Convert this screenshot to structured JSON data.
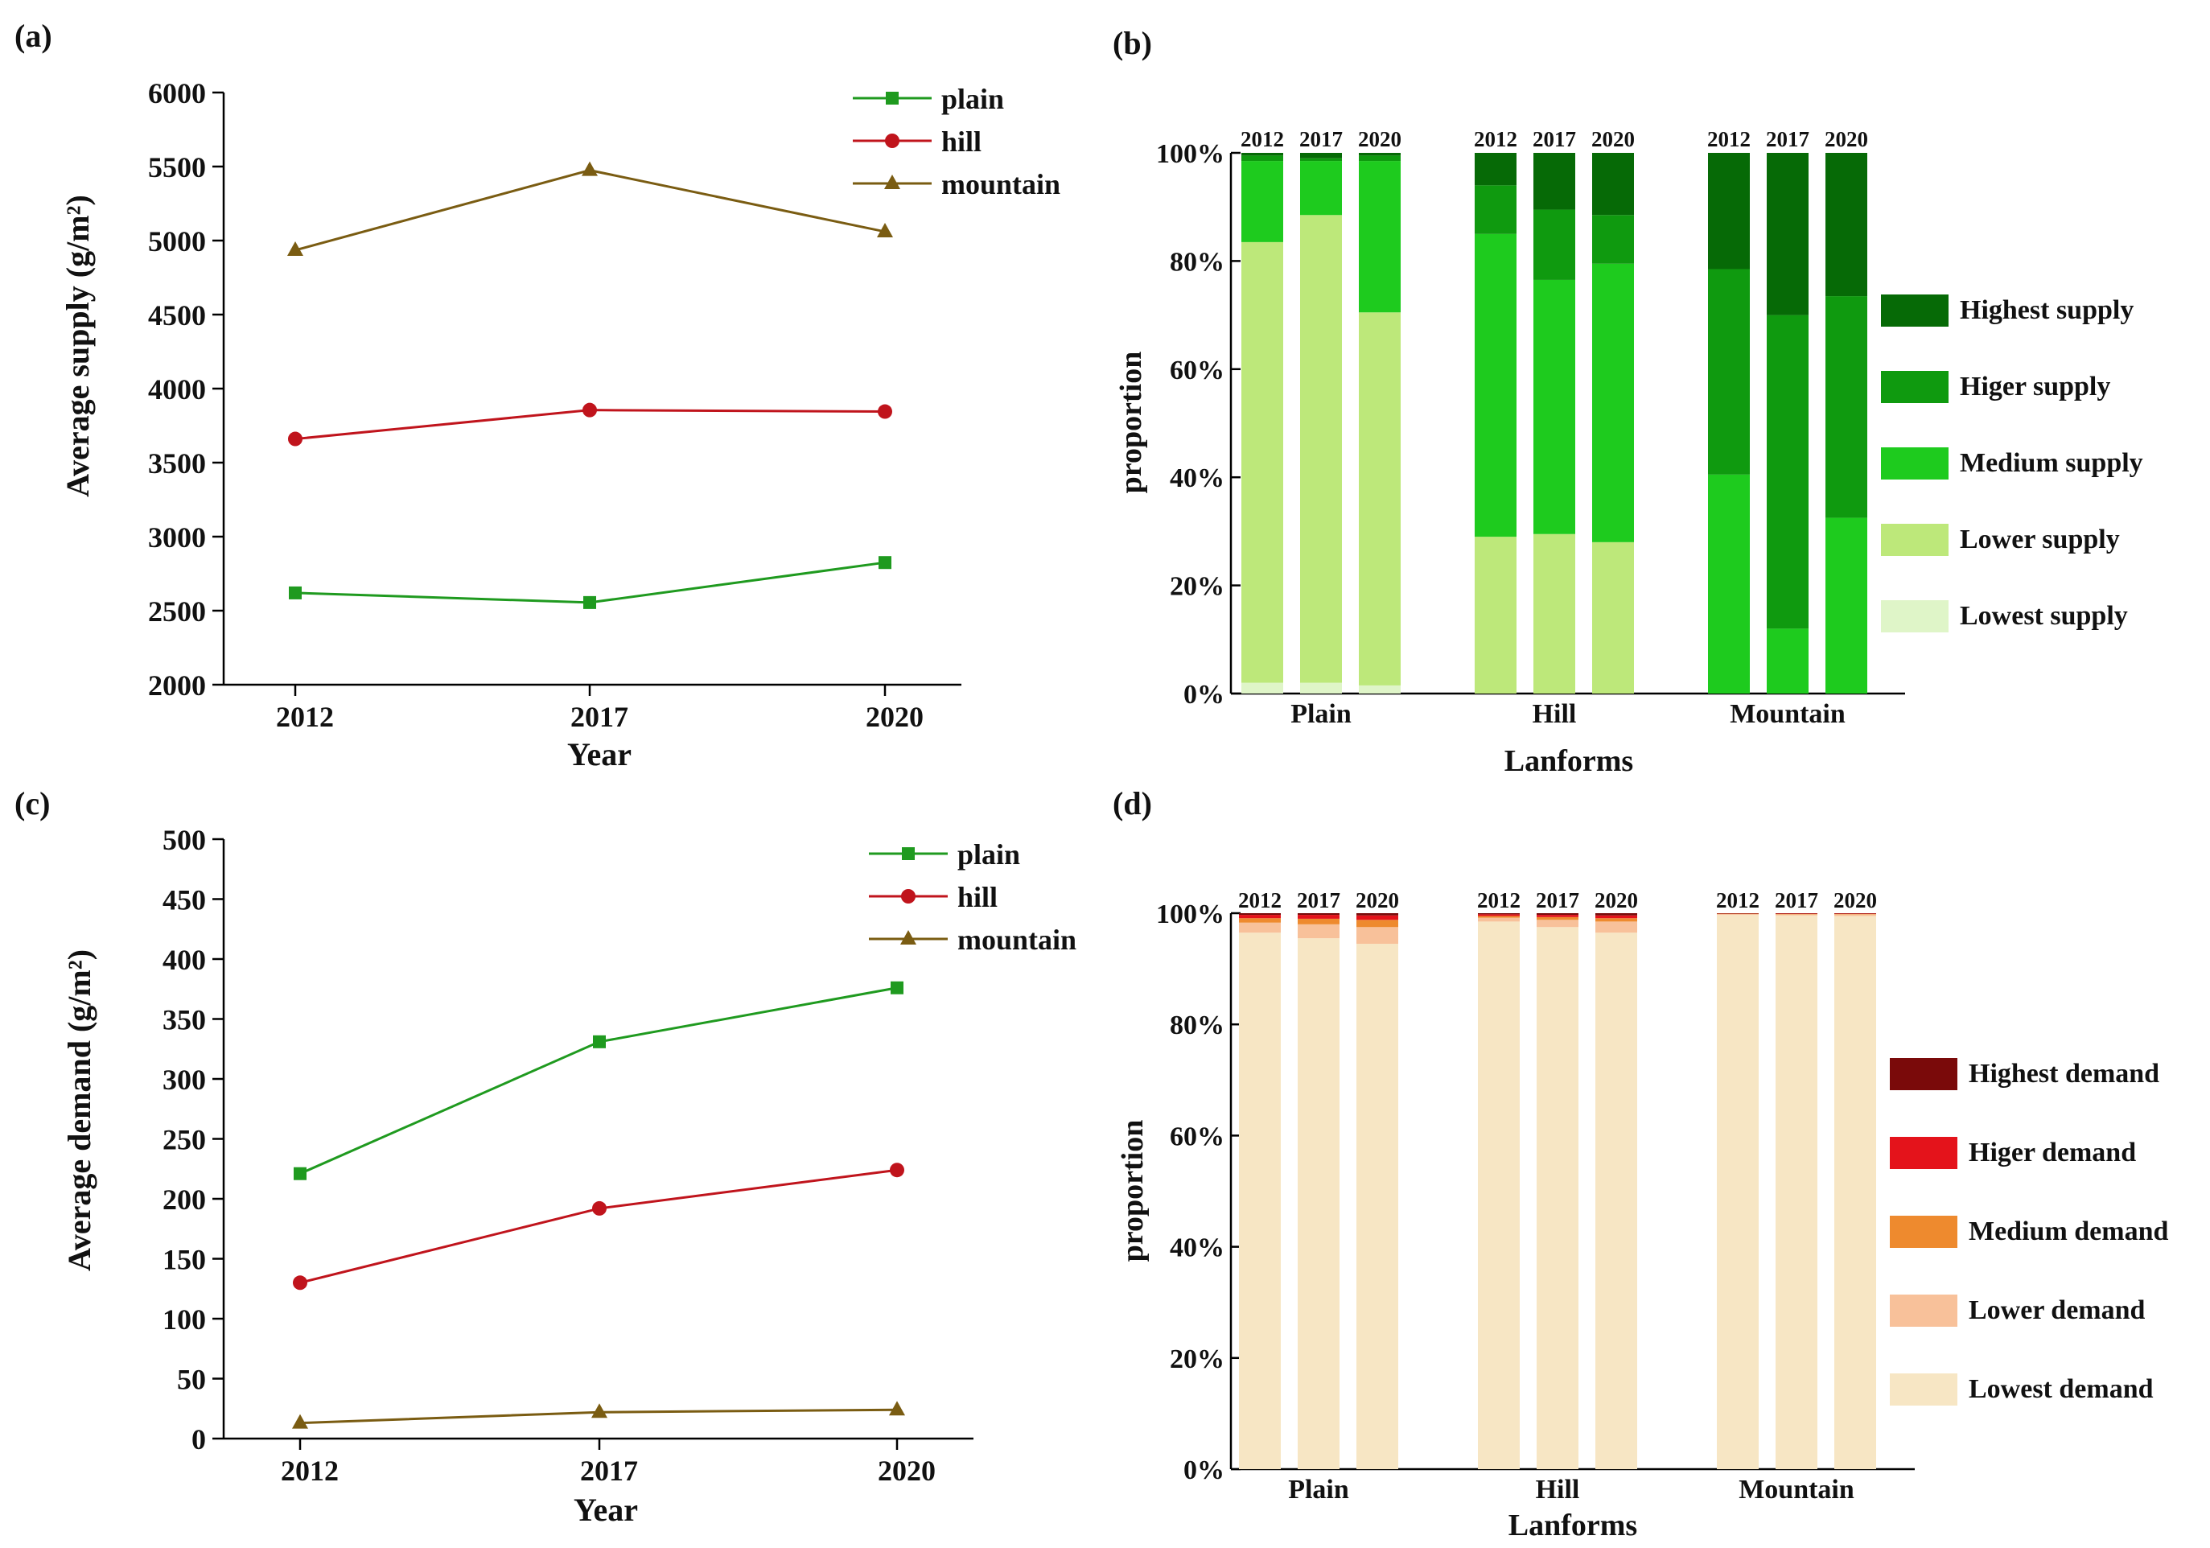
{
  "chart_data": [
    {
      "panel": "(a)",
      "type": "line",
      "title": "",
      "xlabel": "Year",
      "ylabel": "Average supply (g/m²)",
      "categories": [
        "2012",
        "2017",
        "2020"
      ],
      "ylim": [
        2000,
        6000
      ],
      "yticks": [
        2000,
        2500,
        3000,
        3500,
        4000,
        4500,
        5000,
        5500,
        6000
      ],
      "legend_position": "top-right",
      "series": [
        {
          "name": "plain",
          "marker": "square",
          "color": "#1f9a1f",
          "values": [
            2620,
            2555,
            2825
          ]
        },
        {
          "name": "hill",
          "marker": "circle",
          "color": "#c0141c",
          "values": [
            3660,
            3855,
            3845
          ]
        },
        {
          "name": "mountain",
          "marker": "triangle",
          "color": "#7a5c12",
          "values": [
            4935,
            5475,
            5060
          ]
        }
      ]
    },
    {
      "panel": "(b)",
      "type": "bar",
      "stacked": true,
      "title": "",
      "xlabel": "Lanforms",
      "ylabel": "proportion",
      "groups": [
        "Plain",
        "Hill",
        "Mountain"
      ],
      "bar_labels": [
        "2012",
        "2017",
        "2020"
      ],
      "yticks": [
        "0%",
        "20%",
        "40%",
        "60%",
        "80%",
        "100%"
      ],
      "ylim": [
        0,
        100
      ],
      "legend_position": "right",
      "series": [
        {
          "name": "Lowest supply",
          "color": "#dff5c8",
          "values": [
            [
              2,
              2,
              1.5
            ],
            [
              0,
              0,
              0
            ],
            [
              0,
              0,
              0
            ]
          ]
        },
        {
          "name": "Lower supply",
          "color": "#bde87a",
          "values": [
            [
              81.5,
              86.5,
              69
            ],
            [
              29,
              29.5,
              28
            ],
            [
              0,
              0,
              0
            ]
          ]
        },
        {
          "name": "Medium supply",
          "color": "#1ecb1e",
          "values": [
            [
              15,
              10,
              28
            ],
            [
              56,
              47,
              51.5
            ],
            [
              40.5,
              12,
              32.5
            ]
          ]
        },
        {
          "name": "Higer supply",
          "color": "#0f9a0f",
          "values": [
            [
              1,
              0.5,
              1
            ],
            [
              9,
              13,
              9
            ],
            [
              38,
              58,
              41
            ]
          ]
        },
        {
          "name": "Highest supply",
          "color": "#066a06",
          "values": [
            [
              0.5,
              1,
              0.5
            ],
            [
              6,
              10.5,
              11.5
            ],
            [
              21.5,
              30,
              26.5
            ]
          ]
        }
      ]
    },
    {
      "panel": "(c)",
      "type": "line",
      "title": "",
      "xlabel": "Year",
      "ylabel": "Average demand (g/m²)",
      "categories": [
        "2012",
        "2017",
        "2020"
      ],
      "ylim": [
        0,
        500
      ],
      "yticks": [
        0,
        50,
        100,
        150,
        200,
        250,
        300,
        350,
        400,
        450,
        500
      ],
      "legend_position": "top-right",
      "series": [
        {
          "name": "plain",
          "marker": "square",
          "color": "#1f9a1f",
          "values": [
            221,
            331,
            376
          ]
        },
        {
          "name": "hill",
          "marker": "circle",
          "color": "#c0141c",
          "values": [
            130,
            192,
            224
          ]
        },
        {
          "name": "mountain",
          "marker": "triangle",
          "color": "#7a5c12",
          "values": [
            13,
            22,
            24
          ]
        }
      ]
    },
    {
      "panel": "(d)",
      "type": "bar",
      "stacked": true,
      "title": "",
      "xlabel": "Lanforms",
      "ylabel": "proportion",
      "groups": [
        "Plain",
        "Hill",
        "Mountain"
      ],
      "bar_labels": [
        "2012",
        "2017",
        "2020"
      ],
      "yticks": [
        "0%",
        "20%",
        "40%",
        "60%",
        "80%",
        "100%"
      ],
      "ylim": [
        0,
        100
      ],
      "legend_position": "right",
      "series": [
        {
          "name": "Lowest demand",
          "color": "#f7e6c4",
          "values": [
            [
              96.5,
              95.5,
              94.5
            ],
            [
              98.5,
              97.5,
              96.5
            ],
            [
              99.7,
              99.6,
              99.5
            ]
          ]
        },
        {
          "name": "Lower demand",
          "color": "#f8c19a",
          "values": [
            [
              1.8,
              2.5,
              3
            ],
            [
              0.7,
              1.3,
              2
            ],
            [
              0.2,
              0.2,
              0.3
            ]
          ]
        },
        {
          "name": "Medium demand",
          "color": "#ee8a2e",
          "values": [
            [
              0.8,
              1,
              1.3
            ],
            [
              0.3,
              0.5,
              0.6
            ],
            [
              0.05,
              0.1,
              0.1
            ]
          ]
        },
        {
          "name": "Higer demand",
          "color": "#e4131b",
          "values": [
            [
              0.6,
              0.7,
              0.8
            ],
            [
              0.3,
              0.4,
              0.5
            ],
            [
              0.03,
              0.05,
              0.05
            ]
          ]
        },
        {
          "name": "Highest demand",
          "color": "#7a0a0a",
          "values": [
            [
              0.3,
              0.3,
              0.4
            ],
            [
              0.2,
              0.3,
              0.4
            ],
            [
              0.02,
              0.05,
              0.05
            ]
          ]
        }
      ]
    }
  ]
}
